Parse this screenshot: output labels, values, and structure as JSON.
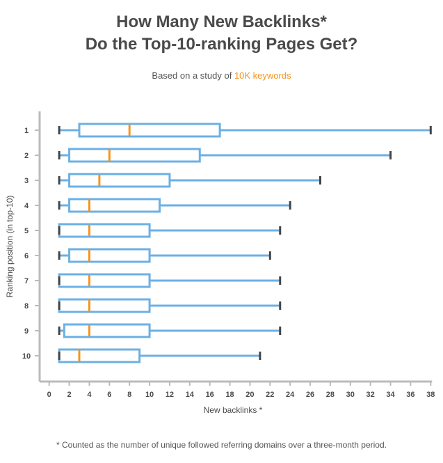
{
  "title_line1": "How Many New Backlinks*",
  "title_line2": "Do the Top-10-ranking Pages Get?",
  "subtitle_prefix": "Based on a study of ",
  "subtitle_highlight": "10K keywords",
  "footnote": "* Counted as the number of unique followed referring domains over a three-month period.",
  "colors": {
    "box": "#6cb0e4",
    "median": "#f7941d",
    "whisker_cap": "#444444",
    "axis": "#bbbbbb",
    "text": "#4a4a4a"
  },
  "chart_data": {
    "type": "boxplot",
    "orientation": "horizontal",
    "xlabel": "New backlinks *",
    "ylabel": "Ranking position (in top-10)",
    "xlim": [
      0,
      38
    ],
    "xticks": [
      0,
      2,
      4,
      6,
      8,
      10,
      12,
      14,
      16,
      18,
      20,
      22,
      24,
      26,
      28,
      30,
      32,
      34,
      36,
      38
    ],
    "categories": [
      "1",
      "2",
      "3",
      "4",
      "5",
      "6",
      "7",
      "8",
      "9",
      "10"
    ],
    "boxes": [
      {
        "position": "1",
        "min": 1,
        "q1": 3,
        "median": 8,
        "q3": 17,
        "max": 38
      },
      {
        "position": "2",
        "min": 1,
        "q1": 2,
        "median": 6,
        "q3": 15,
        "max": 34
      },
      {
        "position": "3",
        "min": 1,
        "q1": 2,
        "median": 5,
        "q3": 12,
        "max": 27
      },
      {
        "position": "4",
        "min": 1,
        "q1": 2,
        "median": 4,
        "q3": 11,
        "max": 24
      },
      {
        "position": "5",
        "min": 1,
        "q1": 1,
        "median": 4,
        "q3": 10,
        "max": 23
      },
      {
        "position": "6",
        "min": 1,
        "q1": 2,
        "median": 4,
        "q3": 10,
        "max": 22
      },
      {
        "position": "7",
        "min": 1,
        "q1": 1,
        "median": 4,
        "q3": 10,
        "max": 23
      },
      {
        "position": "8",
        "min": 1,
        "q1": 1,
        "median": 4,
        "q3": 10,
        "max": 23
      },
      {
        "position": "9",
        "min": 1,
        "q1": 1.5,
        "median": 4,
        "q3": 10,
        "max": 23
      },
      {
        "position": "10",
        "min": 1,
        "q1": 1,
        "median": 3,
        "q3": 9,
        "max": 21
      }
    ]
  }
}
